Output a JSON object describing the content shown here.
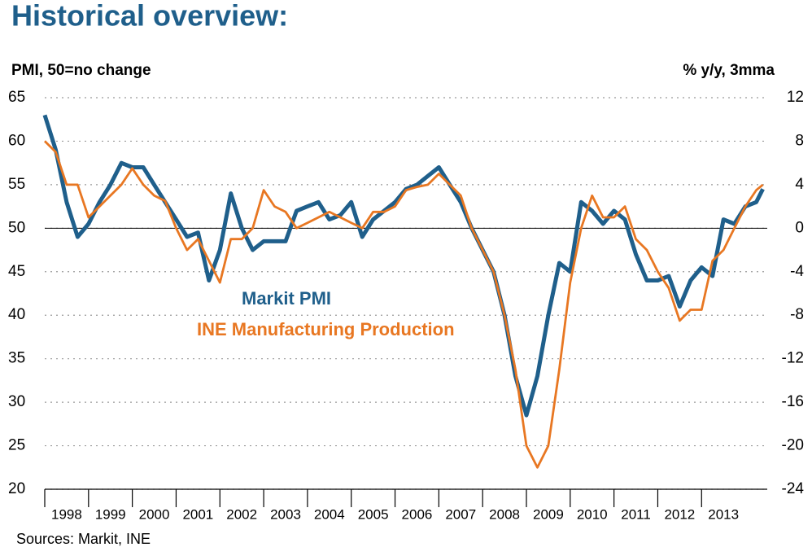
{
  "chart_data": {
    "type": "line",
    "title": "Historical overview:",
    "y_label": "PMI, 50=no change",
    "y2_label": "% y/y, 3mma",
    "source": "Sources: Markit, INE",
    "x": [
      1998,
      1998.25,
      1998.5,
      1998.75,
      1999,
      1999.25,
      1999.5,
      1999.75,
      2000,
      2000.25,
      2000.5,
      2000.75,
      2001,
      2001.25,
      2001.5,
      2001.75,
      2002,
      2002.25,
      2002.5,
      2002.75,
      2003,
      2003.25,
      2003.5,
      2003.75,
      2004,
      2004.25,
      2004.5,
      2004.75,
      2005,
      2005.25,
      2005.5,
      2005.75,
      2006,
      2006.25,
      2006.5,
      2006.75,
      2007,
      2007.25,
      2007.5,
      2007.75,
      2008,
      2008.25,
      2008.5,
      2008.75,
      2009,
      2009.25,
      2009.5,
      2009.75,
      2010,
      2010.25,
      2010.5,
      2010.75,
      2011,
      2011.25,
      2011.5,
      2011.75,
      2012,
      2012.25,
      2012.5,
      2012.75,
      2013,
      2013.25,
      2013.5,
      2013.75,
      2014,
      2014.25,
      2014.4
    ],
    "series": [
      {
        "name": "Markit PMI",
        "color": "#1f5f8b",
        "axis": "y",
        "values": [
          63,
          59,
          53,
          49,
          50.5,
          53,
          55,
          57.5,
          57,
          57,
          55,
          53,
          51,
          49,
          49.5,
          44,
          47.5,
          54,
          50,
          47.5,
          48.5,
          48.5,
          48.5,
          52,
          52.5,
          53,
          51,
          51.5,
          53,
          49,
          51,
          52,
          53,
          54.5,
          55,
          56,
          57,
          55,
          53,
          50,
          47.5,
          45,
          40,
          33,
          28.5,
          33,
          40,
          46,
          45,
          53,
          52,
          50.5,
          52,
          51,
          47,
          44,
          44,
          44.5,
          41,
          44,
          45.5,
          44.5,
          51,
          50.5,
          52.5,
          53,
          54.5
        ]
      },
      {
        "name": "INE Manufacturing Production",
        "color": "#e87722",
        "axis": "y2",
        "values": [
          8,
          7,
          4,
          4,
          1,
          2,
          3,
          4,
          5.5,
          4,
          3,
          2.5,
          0,
          -2,
          -1,
          -3,
          -5,
          -1,
          -1,
          0,
          3.5,
          2,
          1.5,
          0,
          0.5,
          1,
          1.5,
          1,
          0.5,
          0,
          1.5,
          1.5,
          2,
          3.5,
          3.8,
          4,
          5,
          4,
          3,
          0,
          -2,
          -4,
          -8,
          -13,
          -20,
          -22,
          -20,
          -13,
          -5,
          0,
          3,
          1,
          1,
          2,
          -1,
          -2,
          -4,
          -5.5,
          -8.5,
          -7.5,
          -7.5,
          -3,
          -2,
          0,
          2,
          3.5,
          4
        ]
      }
    ],
    "xlim": [
      1998,
      2014.5
    ],
    "xticks": [
      {
        "value": 1998,
        "label": "1998"
      },
      {
        "value": 1999,
        "label": "1999"
      },
      {
        "value": 2000,
        "label": "2000"
      },
      {
        "value": 2001,
        "label": "2001"
      },
      {
        "value": 2002,
        "label": "2002"
      },
      {
        "value": 2003,
        "label": "2003"
      },
      {
        "value": 2004,
        "label": "2004"
      },
      {
        "value": 2005,
        "label": "2005"
      },
      {
        "value": 2006,
        "label": "2006"
      },
      {
        "value": 2007,
        "label": "2007"
      },
      {
        "value": 2008,
        "label": "2008"
      },
      {
        "value": 2009,
        "label": "2009"
      },
      {
        "value": 2010,
        "label": "2010"
      },
      {
        "value": 2011,
        "label": "2011"
      },
      {
        "value": 2012,
        "label": "2012"
      },
      {
        "value": 2013,
        "label": "2013"
      }
    ],
    "ylim": [
      20,
      65
    ],
    "yticks": [
      20,
      25,
      30,
      35,
      40,
      45,
      50,
      55,
      60,
      65
    ],
    "y2lim": [
      -24,
      12
    ],
    "y2ticks": [
      -24,
      -20,
      -16,
      -12,
      -8,
      -4,
      0,
      4,
      8,
      12
    ],
    "hline": 50,
    "grid": true
  }
}
